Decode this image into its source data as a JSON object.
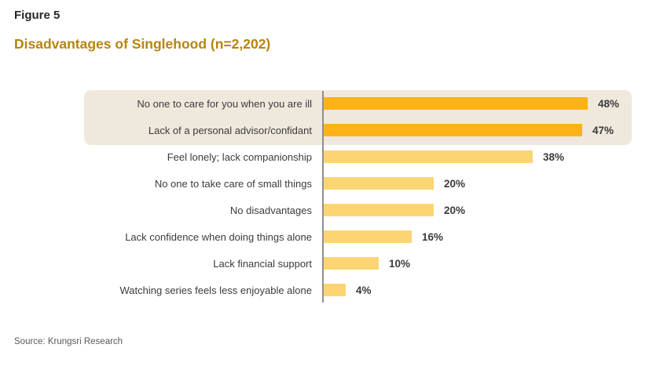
{
  "figure_label": "Figure 5",
  "title": "Disadvantages of Singlehood (n=2,202)",
  "source": "Source: Krungsri Research",
  "colors": {
    "title": "#B6850D",
    "bar_primary": "#FBB317",
    "bar_secondary": "#FCD572",
    "highlight_box": "#EFE8DC",
    "axis_line": "#8F8F8F",
    "label_text": "#3B3B3B",
    "source_text": "#595959"
  },
  "chart_data": {
    "type": "bar",
    "orientation": "horizontal",
    "title": "Disadvantages of Singlehood (n=2,202)",
    "xlabel": "",
    "ylabel": "",
    "xlim": [
      0,
      50
    ],
    "grid": false,
    "legend": false,
    "categories": [
      "No one to care for you when you are ill",
      "Lack of a personal advisor/confidant",
      "Feel lonely; lack companionship",
      "No one to take care of small things",
      "No disadvantages",
      "Lack confidence when doing things alone",
      "Lack financial support",
      "Watching series feels less enjoyable alone"
    ],
    "values": [
      48,
      47,
      38,
      20,
      20,
      16,
      10,
      4
    ],
    "value_labels": [
      "48%",
      "47%",
      "38%",
      "20%",
      "20%",
      "16%",
      "10%",
      "4%"
    ],
    "highlighted_count": 2,
    "highlighted_categories": [
      "No one to care for you when you are ill",
      "Lack of a personal advisor/confidant"
    ]
  }
}
